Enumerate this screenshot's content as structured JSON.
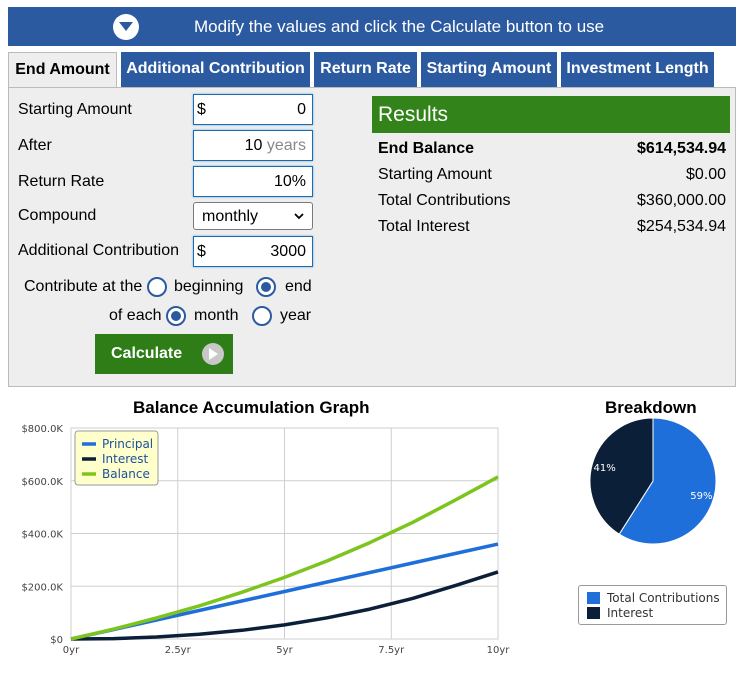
{
  "banner": {
    "text": "Modify the values and click the Calculate button to use"
  },
  "tabs": [
    {
      "label": "End Amount"
    },
    {
      "label": "Additional Contribution"
    },
    {
      "label": "Return Rate"
    },
    {
      "label": "Starting Amount"
    },
    {
      "label": "Investment Length"
    }
  ],
  "form": {
    "starting_amount": {
      "label": "Starting Amount",
      "prefix": "$",
      "value": "0"
    },
    "after": {
      "label": "After",
      "value": "10",
      "unit": "years"
    },
    "return_rate": {
      "label": "Return Rate",
      "value": "10",
      "unit": "%"
    },
    "compound": {
      "label": "Compound",
      "value": "monthly"
    },
    "additional_contribution": {
      "label": "Additional Contribution",
      "prefix": "$",
      "value": "3000"
    },
    "contribute_at": {
      "label": "Contribute at the",
      "option_beginning": "beginning",
      "option_end": "end",
      "selected": "end"
    },
    "of_each": {
      "label": "of each",
      "option_month": "month",
      "option_year": "year",
      "selected": "month"
    },
    "calculate_label": "Calculate"
  },
  "results": {
    "title": "Results",
    "rows": [
      {
        "label": "End Balance",
        "value": "$614,534.94"
      },
      {
        "label": "Starting Amount",
        "value": "$0.00"
      },
      {
        "label": "Total Contributions",
        "value": "$360,000.00"
      },
      {
        "label": "Total Interest",
        "value": "$254,534.94"
      }
    ]
  },
  "colors": {
    "principal": "#1e6fd9",
    "interest": "#0c1f38",
    "balance": "#7dc41f",
    "brand_blue": "#2c5aa0",
    "brand_green": "#32841a"
  },
  "chart_data": [
    {
      "type": "line",
      "title": "Balance Accumulation Graph",
      "x": [
        0,
        1,
        2,
        3,
        4,
        5,
        6,
        7,
        8,
        9,
        10
      ],
      "x_tick_values": [
        0,
        2.5,
        5,
        7.5,
        10
      ],
      "x_tick_labels": [
        "0yr",
        "2.5yr",
        "5yr",
        "7.5yr",
        "10yr"
      ],
      "y_tick_values": [
        0,
        200000,
        400000,
        600000,
        800000
      ],
      "y_tick_labels": [
        "$0",
        "$200.0K",
        "$400.0K",
        "$600.0K",
        "$800.0K"
      ],
      "xlim": [
        0,
        10
      ],
      "ylim": [
        0,
        800000
      ],
      "grid": true,
      "legend_position": "top-left",
      "series": [
        {
          "name": "Principal",
          "color": "#1e6fd9",
          "values": [
            0,
            36000,
            72000,
            108000,
            144000,
            180000,
            216000,
            252000,
            288000,
            324000,
            360000
          ]
        },
        {
          "name": "Interest",
          "color": "#0c1f38",
          "values": [
            0,
            1697,
            7446,
            17683,
            32876,
            53534,
            80211,
            113509,
            154081,
            202638,
            254535
          ]
        },
        {
          "name": "Balance",
          "color": "#7dc41f",
          "values": [
            0,
            37697,
            79446,
            125683,
            176876,
            233534,
            296211,
            365509,
            442081,
            526638,
            614535
          ]
        }
      ]
    },
    {
      "type": "pie",
      "title": "Breakdown",
      "labels": [
        "Total Contributions",
        "Interest"
      ],
      "values": [
        59,
        41
      ],
      "value_labels": [
        "59%",
        "41%"
      ],
      "colors": [
        "#1e6fd9",
        "#0c1f38"
      ]
    }
  ]
}
